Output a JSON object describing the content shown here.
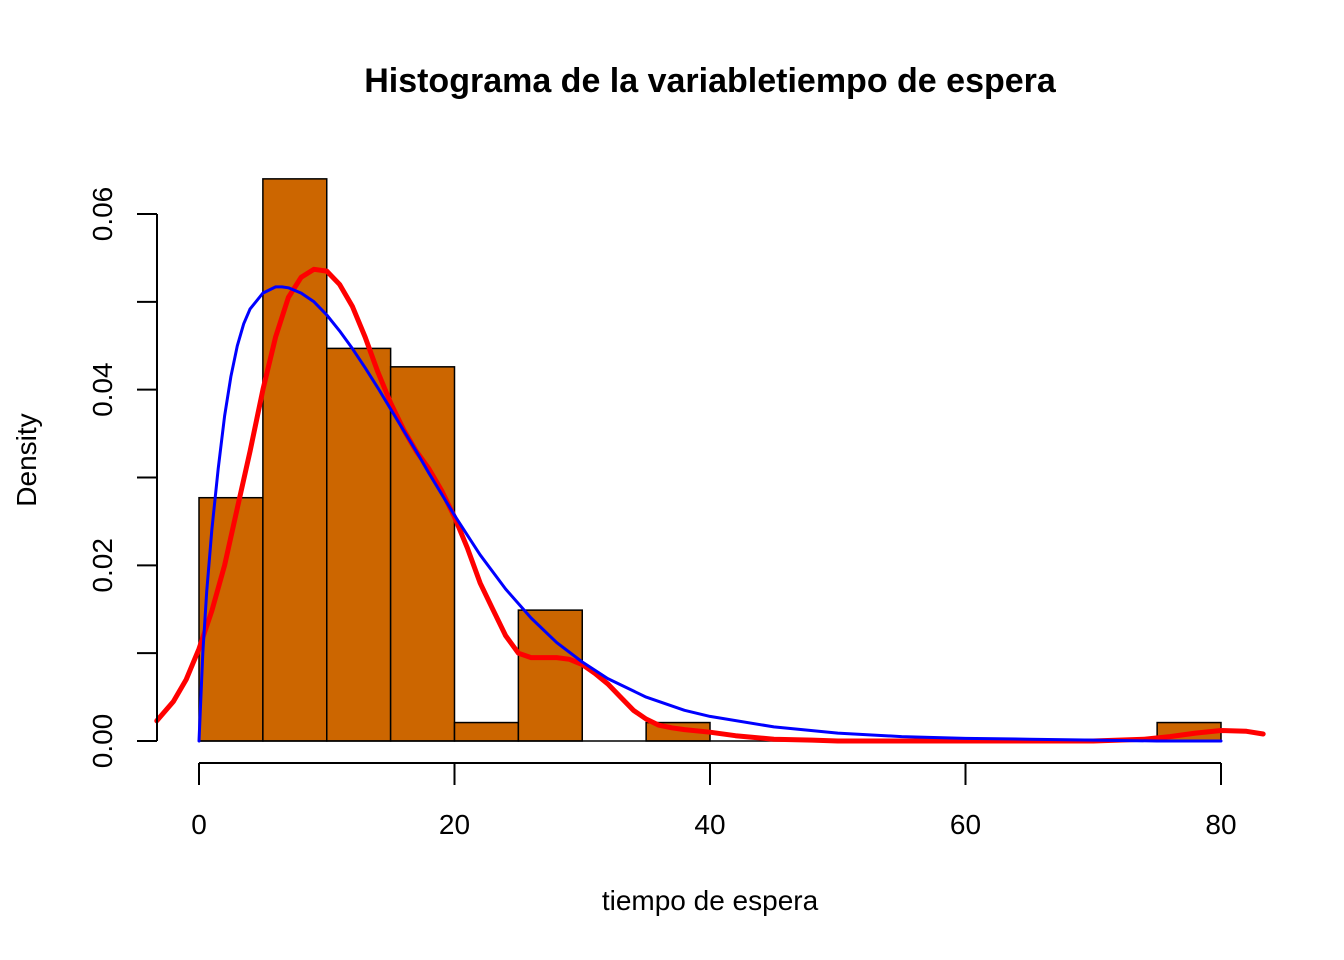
{
  "chart_data": {
    "type": "bar",
    "title": "Histograma de la variabletiempo de espera",
    "xlabel": "tiempo de espera",
    "ylabel": "Density",
    "xlim": [
      -3.3,
      83.3
    ],
    "ylim": [
      0,
      0.064
    ],
    "x_ticks": [
      0,
      20,
      40,
      60,
      80
    ],
    "x_tick_labels": [
      "0",
      "20",
      "40",
      "60",
      "80"
    ],
    "y_ticks": [
      0.0,
      0.01,
      0.02,
      0.03,
      0.04,
      0.05,
      0.06
    ],
    "y_tick_labels": [
      "0.00",
      "",
      "0.02",
      "",
      "0.04",
      "",
      "0.06"
    ],
    "grid": false,
    "legend": "none",
    "bins": [
      {
        "start": 0,
        "end": 5,
        "density": 0.0277
      },
      {
        "start": 5,
        "end": 10,
        "density": 0.064
      },
      {
        "start": 10,
        "end": 15,
        "density": 0.0447
      },
      {
        "start": 15,
        "end": 20,
        "density": 0.0426
      },
      {
        "start": 20,
        "end": 25,
        "density": 0.0021
      },
      {
        "start": 25,
        "end": 30,
        "density": 0.0149
      },
      {
        "start": 30,
        "end": 35,
        "density": 0.0
      },
      {
        "start": 35,
        "end": 40,
        "density": 0.0021
      },
      {
        "start": 40,
        "end": 45,
        "density": 0.0
      },
      {
        "start": 45,
        "end": 50,
        "density": 0.0
      },
      {
        "start": 50,
        "end": 55,
        "density": 0.0
      },
      {
        "start": 55,
        "end": 60,
        "density": 0.0
      },
      {
        "start": 60,
        "end": 65,
        "density": 0.0
      },
      {
        "start": 65,
        "end": 70,
        "density": 0.0
      },
      {
        "start": 70,
        "end": 75,
        "density": 0.0
      },
      {
        "start": 75,
        "end": 80,
        "density": 0.0021
      }
    ],
    "bar_color": "#CC6600",
    "bar_border": "#000000",
    "series": [
      {
        "type": "line",
        "color": "#FF0000",
        "x": [
          -3.3,
          -2,
          -1,
          0,
          1,
          2,
          3,
          4,
          5,
          6,
          7,
          8,
          9,
          10,
          11,
          12,
          13,
          14,
          15,
          16,
          17,
          18,
          19,
          20,
          21,
          22,
          23,
          24,
          25,
          26,
          27,
          28,
          29,
          30,
          31,
          32,
          33,
          34,
          35,
          36,
          37,
          38,
          40,
          42,
          45,
          48,
          50,
          55,
          60,
          65,
          70,
          72,
          74,
          76,
          78,
          80,
          82,
          83.3
        ],
        "y": [
          0.0023,
          0.0045,
          0.007,
          0.0105,
          0.0148,
          0.02,
          0.0265,
          0.033,
          0.04,
          0.046,
          0.0505,
          0.0528,
          0.0537,
          0.0535,
          0.052,
          0.0495,
          0.046,
          0.042,
          0.0385,
          0.0355,
          0.033,
          0.031,
          0.0285,
          0.0255,
          0.022,
          0.018,
          0.015,
          0.012,
          0.01,
          0.0095,
          0.0095,
          0.0095,
          0.0093,
          0.0087,
          0.0077,
          0.0065,
          0.005,
          0.0035,
          0.0025,
          0.0018,
          0.0015,
          0.0013,
          0.001,
          0.0006,
          0.0002,
          0.0001,
          0.0,
          0.0,
          0.0,
          0.0,
          0.0,
          0.0001,
          0.0002,
          0.0005,
          0.0009,
          0.0012,
          0.0011,
          0.0008
        ]
      },
      {
        "type": "line",
        "color": "#0000FF",
        "x": [
          0,
          0.3,
          0.6,
          1,
          1.5,
          2,
          2.5,
          3,
          3.5,
          4,
          5,
          6,
          6.5,
          7,
          8,
          9,
          10,
          11,
          12,
          13,
          14,
          15,
          16,
          17,
          18,
          19,
          20,
          22,
          24,
          26,
          28,
          30,
          32,
          35,
          38,
          40,
          45,
          50,
          55,
          60,
          65,
          70,
          75,
          80
        ],
        "y": [
          0.0,
          0.01,
          0.017,
          0.024,
          0.031,
          0.037,
          0.0415,
          0.045,
          0.0475,
          0.0492,
          0.051,
          0.0517,
          0.0517,
          0.0516,
          0.051,
          0.05,
          0.0485,
          0.0467,
          0.0447,
          0.0425,
          0.0402,
          0.0378,
          0.0354,
          0.033,
          0.0305,
          0.0281,
          0.0257,
          0.0212,
          0.0173,
          0.014,
          0.0112,
          0.009,
          0.0071,
          0.005,
          0.0035,
          0.0028,
          0.0016,
          0.0009,
          0.0005,
          0.0003,
          0.0002,
          0.0001,
          0.0,
          0.0
        ]
      }
    ]
  }
}
